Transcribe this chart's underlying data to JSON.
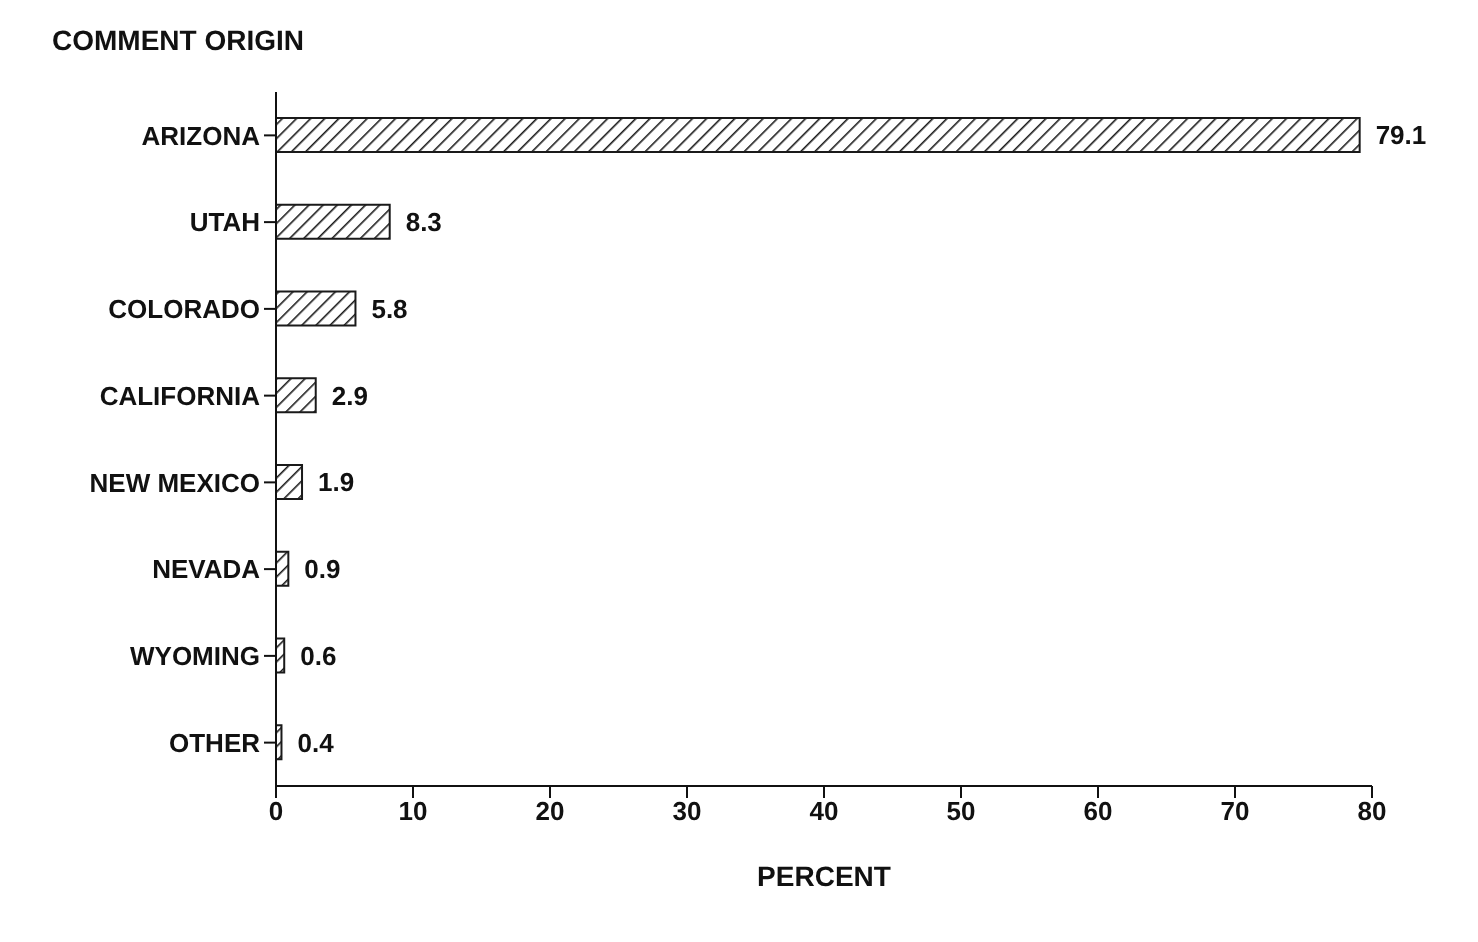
{
  "chart_data": {
    "type": "bar",
    "orientation": "horizontal",
    "title": "COMMENT ORIGIN",
    "xlabel": "PERCENT",
    "categories": [
      "ARIZONA",
      "UTAH",
      "COLORADO",
      "CALIFORNIA",
      "NEW MEXICO",
      "NEVADA",
      "WYOMING",
      "OTHER"
    ],
    "values": [
      79.1,
      8.3,
      5.8,
      2.9,
      1.9,
      0.9,
      0.6,
      0.4
    ],
    "color": "#1a1a1a",
    "xlim": [
      0,
      80
    ],
    "xticks": [
      0,
      10,
      20,
      30,
      40,
      50,
      60,
      70,
      80
    ],
    "data_labels": true,
    "grid": false
  }
}
